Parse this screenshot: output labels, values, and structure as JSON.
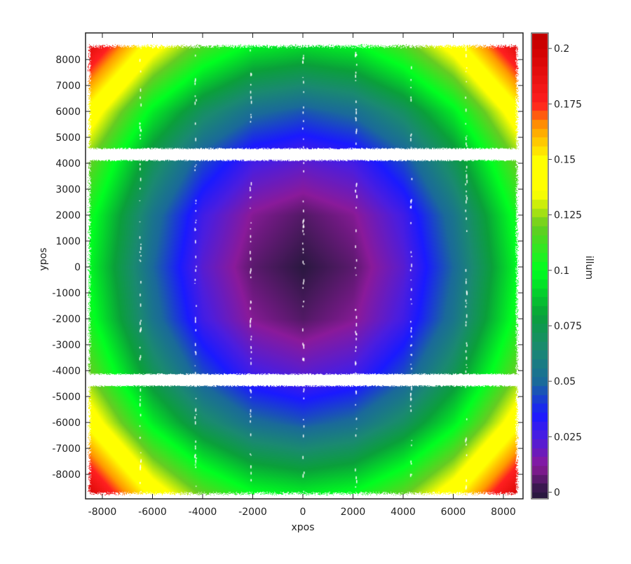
{
  "chart_data": {
    "type": "heatmap",
    "title": "",
    "xlabel": "xpos",
    "ylabel": "ypos",
    "colorbar_label": "illum",
    "xlim": [
      -8800,
      8800
    ],
    "ylim": [
      -9000,
      9000
    ],
    "xticks": [
      -8000,
      -6000,
      -4000,
      -2000,
      0,
      2000,
      4000,
      6000,
      8000
    ],
    "yticks": [
      8000,
      7000,
      6000,
      5000,
      4000,
      3000,
      2000,
      1000,
      0,
      -1000,
      -2000,
      -3000,
      -4000,
      -5000,
      -6000,
      -7000,
      -8000
    ],
    "colorbar_ticks": [
      "0.2",
      "0.175",
      "0.15",
      "0.125",
      "0.1",
      "0.075",
      "0.05",
      "0.025",
      "0"
    ],
    "colorbar_range": [
      -0.003,
      0.207
    ],
    "colormap": [
      [
        0.0,
        "#2a1840"
      ],
      [
        0.012,
        "#8a1a9a"
      ],
      [
        0.025,
        "#4a1de0"
      ],
      [
        0.035,
        "#1a1aff"
      ],
      [
        0.05,
        "#1a6a9a"
      ],
      [
        0.065,
        "#1a8a70"
      ],
      [
        0.08,
        "#0aa03a"
      ],
      [
        0.1,
        "#00ff20"
      ],
      [
        0.12,
        "#66cc22"
      ],
      [
        0.135,
        "#ffff00"
      ],
      [
        0.15,
        "#ffff00"
      ],
      [
        0.165,
        "#ff9900"
      ],
      [
        0.175,
        "#ff2020"
      ],
      [
        0.2,
        "#d00000"
      ],
      [
        0.207,
        "#c00000"
      ]
    ],
    "data_extent": {
      "x": [
        -8600,
        8600
      ],
      "y": [
        -8800,
        8600
      ]
    },
    "gaps_y": [
      [
        4150,
        4550
      ],
      [
        -4550,
        -4150
      ]
    ],
    "grid_x": [
      -8000,
      -6000,
      -4000,
      -2000,
      0,
      2000,
      4000,
      6000,
      8000
    ],
    "grid_y": [
      8000,
      6000,
      4000,
      2000,
      0,
      -2000,
      -4000,
      -6000,
      -8000
    ],
    "illum": [
      [
        0.171,
        0.132,
        0.105,
        0.088,
        0.083,
        0.088,
        0.105,
        0.132,
        0.171
      ],
      [
        0.135,
        0.096,
        0.069,
        0.052,
        0.046,
        0.052,
        0.069,
        0.096,
        0.135
      ],
      [
        0.109,
        0.071,
        0.043,
        0.026,
        0.021,
        0.026,
        0.043,
        0.071,
        0.109
      ],
      [
        0.094,
        0.055,
        0.027,
        0.011,
        0.005,
        0.011,
        0.027,
        0.055,
        0.094
      ],
      [
        0.089,
        0.05,
        0.022,
        0.006,
        0.0,
        0.006,
        0.022,
        0.05,
        0.089
      ],
      [
        0.094,
        0.055,
        0.027,
        0.011,
        0.005,
        0.011,
        0.027,
        0.055,
        0.094
      ],
      [
        0.109,
        0.071,
        0.043,
        0.026,
        0.021,
        0.026,
        0.043,
        0.071,
        0.109
      ],
      [
        0.135,
        0.096,
        0.069,
        0.052,
        0.046,
        0.052,
        0.069,
        0.096,
        0.135
      ],
      [
        0.171,
        0.132,
        0.105,
        0.088,
        0.083,
        0.088,
        0.105,
        0.132,
        0.171
      ]
    ],
    "grid": false,
    "legend": "colorbar-right"
  }
}
